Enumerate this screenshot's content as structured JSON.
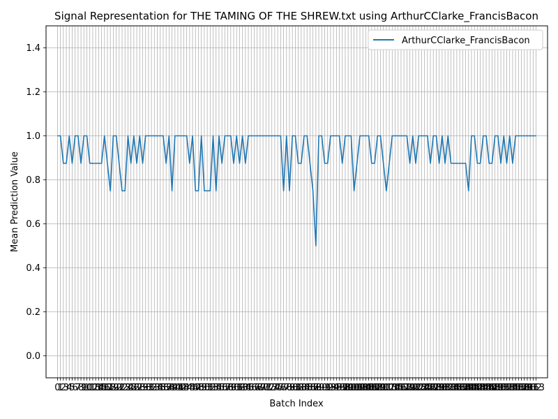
{
  "chart_data": {
    "type": "line",
    "title": "Signal Representation for THE TAMING OF THE SHREW.txt using ArthurCClarke_FrancisBacon",
    "xlabel": "Batch Index",
    "ylabel": "Mean Prediction Value",
    "xlim": [
      -3.9,
      166.9
    ],
    "ylim": [
      -0.1,
      1.5
    ],
    "yticks": [
      0.0,
      0.2,
      0.4,
      0.6,
      0.8,
      1.0,
      1.2,
      1.4
    ],
    "grid": true,
    "legend_position": "top-right",
    "series": [
      {
        "name": "ArthurCClarke_FrancisBacon",
        "color": "#1f77b4",
        "x": [
          0,
          1,
          2,
          3,
          4,
          5,
          6,
          7,
          8,
          9,
          10,
          11,
          12,
          13,
          14,
          15,
          16,
          17,
          18,
          19,
          20,
          21,
          22,
          23,
          24,
          25,
          26,
          27,
          28,
          29,
          30,
          31,
          32,
          33,
          34,
          35,
          36,
          37,
          38,
          39,
          40,
          41,
          42,
          43,
          44,
          45,
          46,
          47,
          48,
          49,
          50,
          51,
          52,
          53,
          54,
          55,
          56,
          57,
          58,
          59,
          60,
          61,
          62,
          63,
          64,
          65,
          66,
          67,
          68,
          69,
          70,
          71,
          72,
          73,
          74,
          75,
          76,
          77,
          78,
          79,
          80,
          81,
          82,
          83,
          84,
          85,
          86,
          87,
          88,
          89,
          90,
          91,
          92,
          93,
          94,
          95,
          96,
          97,
          98,
          99,
          100,
          101,
          102,
          103,
          104,
          105,
          106,
          107,
          108,
          109,
          110,
          111,
          112,
          113,
          114,
          115,
          116,
          117,
          118,
          119,
          120,
          121,
          122,
          123,
          124,
          125,
          126,
          127,
          128,
          129,
          130,
          131,
          132,
          133,
          134,
          135,
          136,
          137,
          138,
          139,
          140,
          141,
          142,
          143,
          144,
          145,
          146,
          147,
          148,
          149,
          150,
          151,
          152,
          153,
          154,
          155,
          156,
          157,
          158,
          159,
          160,
          161,
          162,
          163
        ],
        "y": [
          1.0,
          1.0,
          0.875,
          0.875,
          1.0,
          0.875,
          1.0,
          1.0,
          0.875,
          1.0,
          1.0,
          0.875,
          0.875,
          0.875,
          0.875,
          0.875,
          1.0,
          0.875,
          0.75,
          1.0,
          1.0,
          0.875,
          0.75,
          0.75,
          1.0,
          0.875,
          1.0,
          0.875,
          1.0,
          0.875,
          1.0,
          1.0,
          1.0,
          1.0,
          1.0,
          1.0,
          1.0,
          0.875,
          1.0,
          0.75,
          1.0,
          1.0,
          1.0,
          1.0,
          1.0,
          0.875,
          1.0,
          0.75,
          0.75,
          1.0,
          0.75,
          0.75,
          0.75,
          1.0,
          0.75,
          1.0,
          0.875,
          1.0,
          1.0,
          1.0,
          0.875,
          1.0,
          0.875,
          1.0,
          0.875,
          1.0,
          1.0,
          1.0,
          1.0,
          1.0,
          1.0,
          1.0,
          1.0,
          1.0,
          1.0,
          1.0,
          1.0,
          0.75,
          1.0,
          0.75,
          1.0,
          1.0,
          0.875,
          0.875,
          1.0,
          1.0,
          0.875,
          0.75,
          0.5,
          1.0,
          1.0,
          0.875,
          0.875,
          1.0,
          1.0,
          1.0,
          1.0,
          0.875,
          1.0,
          1.0,
          1.0,
          0.75,
          0.875,
          1.0,
          1.0,
          1.0,
          1.0,
          0.875,
          0.875,
          1.0,
          1.0,
          0.875,
          0.75,
          0.875,
          1.0,
          1.0,
          1.0,
          1.0,
          1.0,
          1.0,
          0.875,
          1.0,
          0.875,
          1.0,
          1.0,
          1.0,
          1.0,
          0.875,
          1.0,
          1.0,
          0.875,
          1.0,
          0.875,
          1.0,
          0.875,
          0.875,
          0.875,
          0.875,
          0.875,
          0.875,
          0.75,
          1.0,
          1.0,
          0.875,
          0.875,
          1.0,
          1.0,
          0.875,
          0.875,
          1.0,
          1.0,
          0.875,
          1.0,
          0.875,
          1.0,
          0.875,
          1.0,
          1.0,
          1.0,
          1.0,
          1.0,
          1.0,
          1.0,
          1.0
        ]
      }
    ]
  }
}
